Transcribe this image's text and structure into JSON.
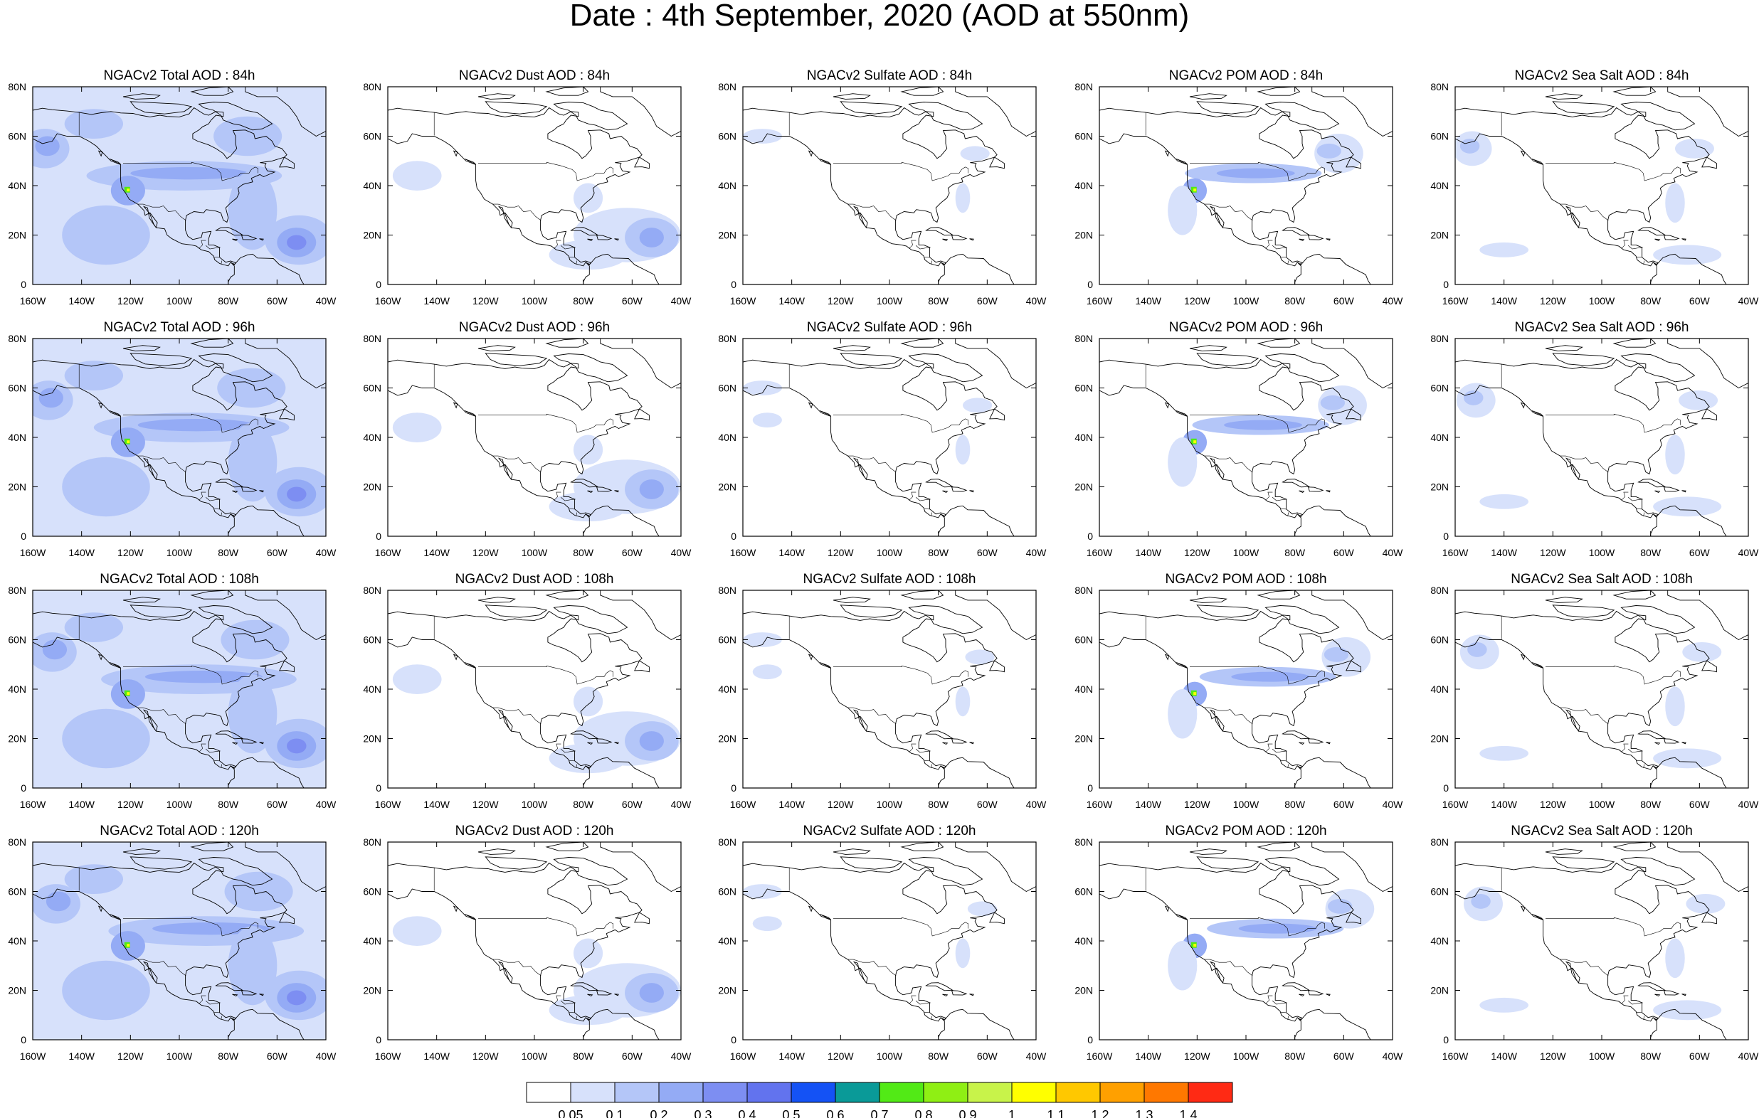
{
  "title": "Date : 4th September, 2020 (AOD at 550nm)",
  "panel_rows": [
    [
      "NGACv2 Total AOD : 84h",
      "NGACv2 Dust AOD : 84h",
      "NGACv2 Sulfate AOD : 84h",
      "NGACv2 POM AOD : 84h",
      "NGACv2 Sea Salt AOD : 84h"
    ],
    [
      "NGACv2 Total AOD : 96h",
      "NGACv2 Dust AOD : 96h",
      "NGACv2 Sulfate AOD : 96h",
      "NGACv2 POM AOD : 96h",
      "NGACv2 Sea Salt AOD : 96h"
    ],
    [
      "NGACv2 Total AOD : 108h",
      "NGACv2 Dust AOD : 108h",
      "NGACv2 Sulfate AOD : 108h",
      "NGACv2 POM AOD : 108h",
      "NGACv2 Sea Salt AOD : 108h"
    ],
    [
      "NGACv2 Total AOD : 120h",
      "NGACv2 Dust AOD : 120h",
      "NGACv2 Sulfate AOD : 120h",
      "NGACv2 POM AOD : 120h",
      "NGACv2 Sea Salt  AOD : 120h"
    ]
  ],
  "lon_ticks": [
    "160W",
    "140W",
    "120W",
    "100W",
    "80W",
    "60W",
    "40W"
  ],
  "lat_ticks": [
    "0",
    "20N",
    "40N",
    "60N",
    "80N"
  ],
  "colorbar": {
    "labels": [
      "0.05",
      "0.1",
      "0.2",
      "0.3",
      "0.4",
      "0.5",
      "0.6",
      "0.7",
      "0.8",
      "0.9",
      "1",
      "1.1",
      "1.2",
      "1.3",
      "1.4"
    ],
    "colors": [
      "#ffffff",
      "#d7e1fb",
      "#b4c6f8",
      "#94abf5",
      "#7d8ef2",
      "#6273ee",
      "#1452f5",
      "#0a9a98",
      "#52ea16",
      "#8fef14",
      "#c8f34a",
      "#ffff00",
      "#ffc800",
      "#ffa000",
      "#ff7800",
      "#ff2a14"
    ]
  }
}
